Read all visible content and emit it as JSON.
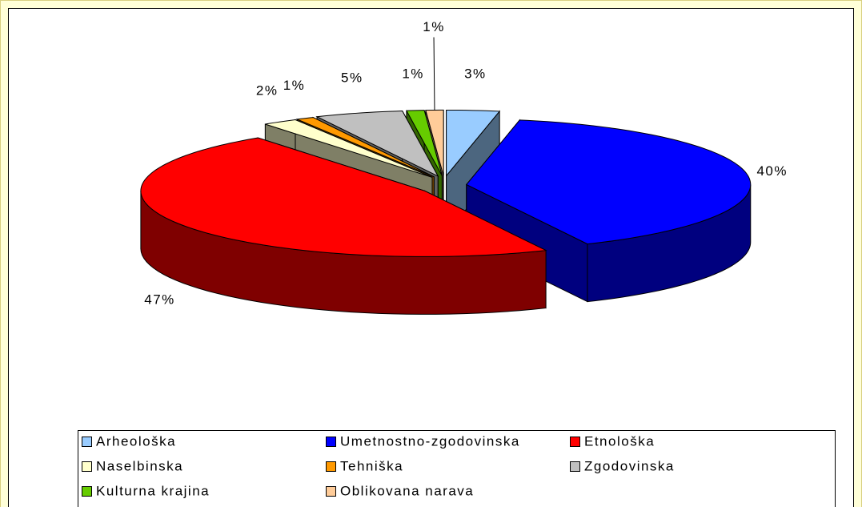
{
  "chart_data": {
    "type": "pie3d",
    "categories": [
      "Arheološka",
      "Umetnostno-zgodovinska",
      "Etnološka",
      "Naselbinska",
      "Tehniška",
      "Zgodovinska",
      "Kulturna krajina",
      "Oblikovana narava"
    ],
    "values": [
      3,
      40,
      47,
      2,
      1,
      5,
      1,
      1
    ],
    "value_labels": [
      "3%",
      "40%",
      "47%",
      "2%",
      "1%",
      "5%",
      "1%",
      "1%"
    ],
    "colors": [
      "#99ccff",
      "#0000ff",
      "#ff0000",
      "#ffffcc",
      "#ff9900",
      "#c0c0c0",
      "#66cc00",
      "#ffcc99"
    ],
    "legend": "bottom"
  }
}
